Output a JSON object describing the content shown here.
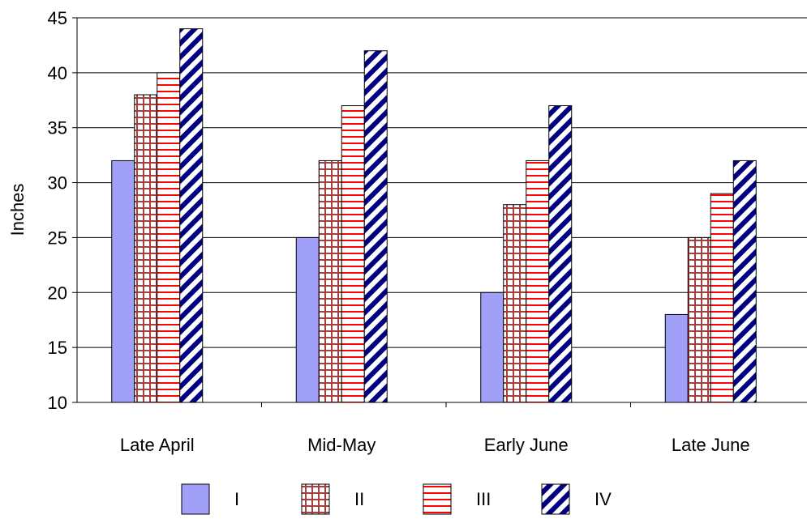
{
  "chart_data": {
    "type": "bar",
    "title": "",
    "xlabel": "",
    "ylabel": "Inches",
    "ylim": [
      10,
      45
    ],
    "yticks": [
      10,
      15,
      20,
      25,
      30,
      35,
      40,
      45
    ],
    "grid": true,
    "legend_position": "bottom",
    "categories": [
      "Late April",
      "Mid-May",
      "Early June",
      "Late June"
    ],
    "series": [
      {
        "name": "I",
        "values": [
          32,
          25,
          20,
          18
        ],
        "pattern": "solid",
        "color": "#a0a0f8"
      },
      {
        "name": "II",
        "values": [
          38,
          32,
          28,
          25
        ],
        "pattern": "grid",
        "color": "#a04040"
      },
      {
        "name": "III",
        "values": [
          40,
          37,
          32,
          29
        ],
        "pattern": "horizontal",
        "color": "#ff0000"
      },
      {
        "name": "IV",
        "values": [
          44,
          42,
          37,
          32
        ],
        "pattern": "diagonal",
        "color": "#000080"
      }
    ]
  }
}
